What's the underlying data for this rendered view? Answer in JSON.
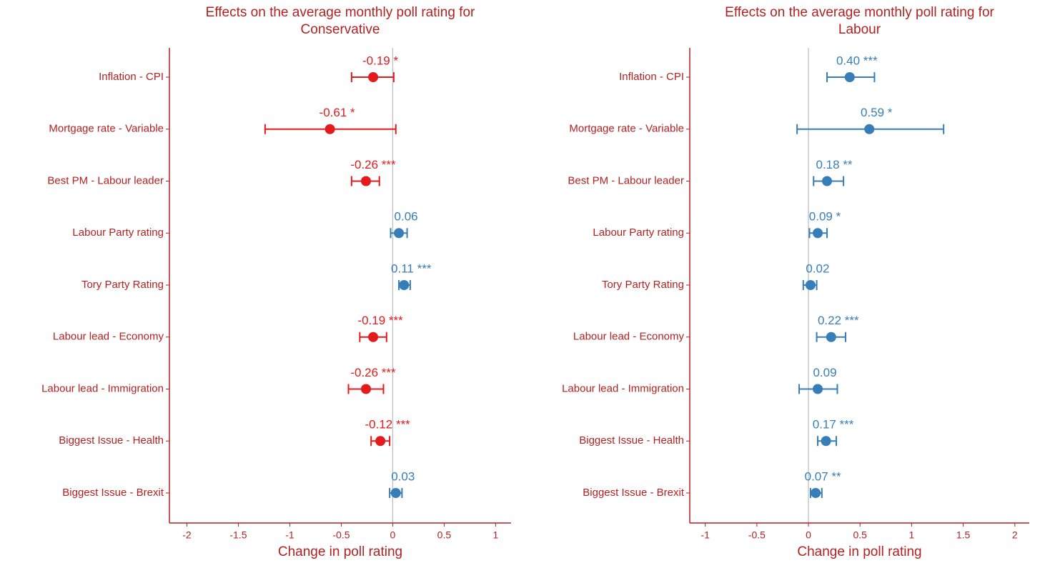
{
  "chart_data": [
    {
      "type": "dot",
      "title": [
        "Effects on the average monthly poll rating for",
        "Conservative"
      ],
      "xlabel": "Change in poll rating",
      "categories": [
        "Inflation - CPI",
        "Mortgage rate - Variable",
        "Best PM - Labour leader",
        "Labour Party rating",
        "Tory Party Rating",
        "Labour lead - Economy",
        "Labour lead - Immigration",
        "Biggest Issue - Health",
        "Biggest Issue - Brexit"
      ],
      "values": [
        -0.19,
        -0.61,
        -0.26,
        0.06,
        0.11,
        -0.19,
        -0.26,
        -0.12,
        0.03
      ],
      "value_labels": [
        "-0.19 *",
        "-0.61 *",
        "-0.26 ***",
        "0.06",
        "0.11 ***",
        "-0.19 ***",
        "-0.26 ***",
        "-0.12 ***",
        "0.03"
      ],
      "lower": [
        -0.4,
        -1.24,
        -0.4,
        -0.02,
        0.06,
        -0.32,
        -0.43,
        -0.21,
        -0.03
      ],
      "upper": [
        0.01,
        0.03,
        -0.13,
        0.14,
        0.17,
        -0.06,
        -0.09,
        -0.03,
        0.09
      ],
      "colors": [
        "#e41a1c",
        "#e41a1c",
        "#e41a1c",
        "#377eb8",
        "#377eb8",
        "#e41a1c",
        "#e41a1c",
        "#e41a1c",
        "#377eb8"
      ],
      "xlim": [
        -2.17,
        1.15
      ],
      "xticks": [
        -2,
        -1.5,
        -1,
        -0.5,
        0,
        0.5,
        1
      ],
      "reference_line": 0
    },
    {
      "type": "dot",
      "title": [
        "Effects on the average monthly poll rating for",
        "Labour"
      ],
      "xlabel": "Change in poll rating",
      "categories": [
        "Inflation - CPI",
        "Mortgage rate - Variable",
        "Best PM - Labour leader",
        "Labour Party rating",
        "Tory Party Rating",
        "Labour lead - Economy",
        "Labour lead - Immigration",
        "Biggest Issue - Health",
        "Biggest Issue - Brexit"
      ],
      "values": [
        0.4,
        0.59,
        0.18,
        0.09,
        0.02,
        0.22,
        0.09,
        0.17,
        0.07
      ],
      "value_labels": [
        "0.40 ***",
        "0.59 *",
        "0.18 **",
        "0.09 *",
        "0.02",
        "0.22 ***",
        "0.09",
        "0.17 ***",
        "0.07 **"
      ],
      "lower": [
        0.18,
        -0.11,
        0.05,
        0.01,
        -0.05,
        0.08,
        -0.09,
        0.09,
        0.02
      ],
      "upper": [
        0.64,
        1.31,
        0.34,
        0.18,
        0.08,
        0.36,
        0.28,
        0.27,
        0.13
      ],
      "colors": [
        "#377eb8",
        "#377eb8",
        "#377eb8",
        "#377eb8",
        "#377eb8",
        "#377eb8",
        "#377eb8",
        "#377eb8",
        "#377eb8"
      ],
      "xlim": [
        -1.15,
        2.14
      ],
      "xticks": [
        -1,
        -0.5,
        0,
        0.5,
        1,
        1.5,
        2
      ],
      "reference_line": 0
    }
  ]
}
